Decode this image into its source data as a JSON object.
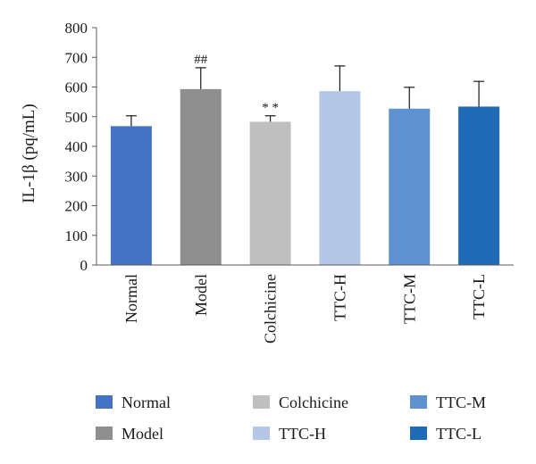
{
  "chart_data": {
    "type": "bar",
    "title": "",
    "xlabel": "",
    "ylabel": "IL-1β (pq/mL)",
    "ylim": [
      0,
      800
    ],
    "yticks": [
      0,
      100,
      200,
      300,
      400,
      500,
      600,
      700,
      800
    ],
    "grid": false,
    "legend_position": "bottom",
    "categories": [
      "Normal",
      "Model",
      "Colchicine",
      "TTC-H",
      "TTC-M",
      "TTC-L"
    ],
    "values": [
      468,
      593,
      483,
      586,
      527,
      534
    ],
    "errors": [
      35,
      72,
      20,
      85,
      72,
      85
    ],
    "annotations": [
      "",
      "##",
      "* *",
      "",
      "",
      ""
    ],
    "colors": [
      "#4472c4",
      "#8f8f8f",
      "#bfbfbf",
      "#b4c7e7",
      "#5b92cf",
      "#1f6bb8"
    ],
    "legend": [
      {
        "label": "Normal",
        "color": "#4472c4"
      },
      {
        "label": "Colchicine",
        "color": "#bfbfbf"
      },
      {
        "label": "TTC-M",
        "color": "#5b92cf"
      },
      {
        "label": "Model",
        "color": "#8f8f8f"
      },
      {
        "label": "TTC-H",
        "color": "#b4c7e7"
      },
      {
        "label": "TTC-L",
        "color": "#1f6bb8"
      }
    ]
  }
}
